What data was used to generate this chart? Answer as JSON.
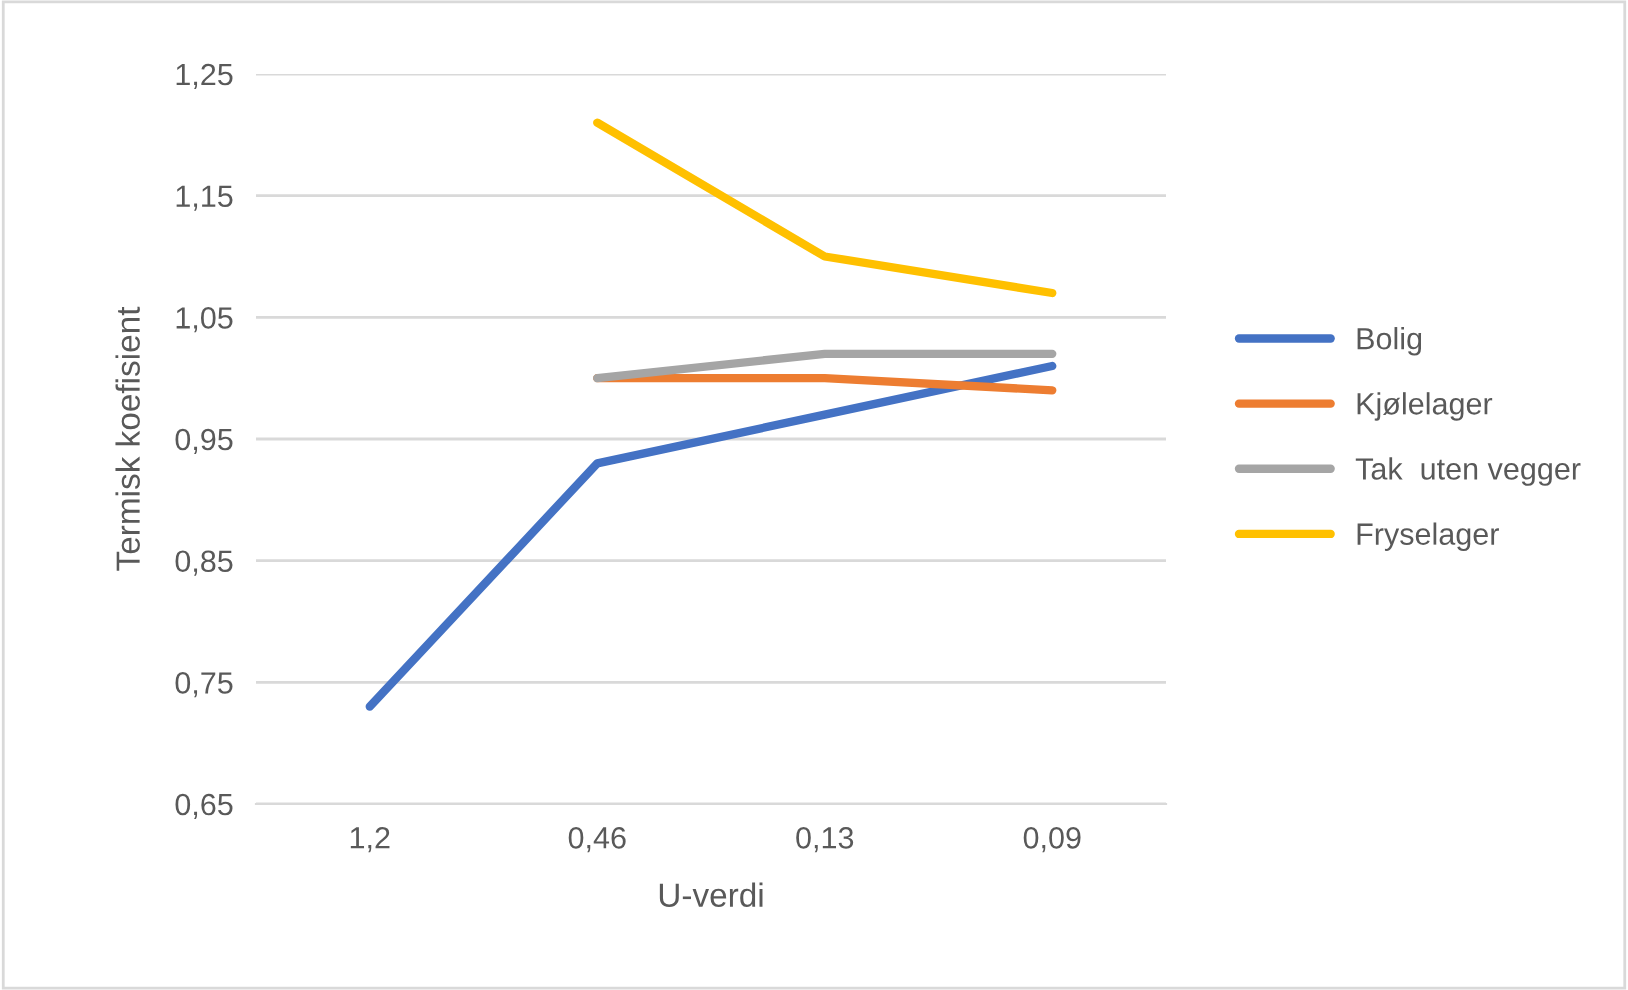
{
  "chart_data": {
    "type": "line",
    "xlabel": "U-verdi",
    "ylabel": "Termisk koefisient",
    "categories": [
      "1,2",
      "0,46",
      "0,13",
      "0,09"
    ],
    "series": [
      {
        "name": "Bolig",
        "color": "#4472c4",
        "values": [
          0.73,
          0.93,
          0.97,
          1.01
        ]
      },
      {
        "name": "Kjølelager",
        "color": "#ed7d31",
        "values": [
          null,
          1.0,
          1.0,
          0.99
        ]
      },
      {
        "name": "Tak  uten vegger",
        "color": "#a5a5a5",
        "values": [
          null,
          1.0,
          1.02,
          1.02
        ]
      },
      {
        "name": "Fryselager",
        "color": "#ffc000",
        "values": [
          null,
          1.21,
          1.1,
          1.07
        ]
      }
    ],
    "ylim": [
      0.65,
      1.25
    ],
    "yticks": [
      {
        "value": 0.65,
        "label": "0,65"
      },
      {
        "value": 0.75,
        "label": "0,75"
      },
      {
        "value": 0.85,
        "label": "0,85"
      },
      {
        "value": 0.95,
        "label": "0,95"
      },
      {
        "value": 1.05,
        "label": "1,05"
      },
      {
        "value": 1.15,
        "label": "1,15"
      },
      {
        "value": 1.25,
        "label": "1,25"
      }
    ],
    "grid": "y",
    "legend": "right",
    "marker": "none",
    "line_style": "solid"
  }
}
